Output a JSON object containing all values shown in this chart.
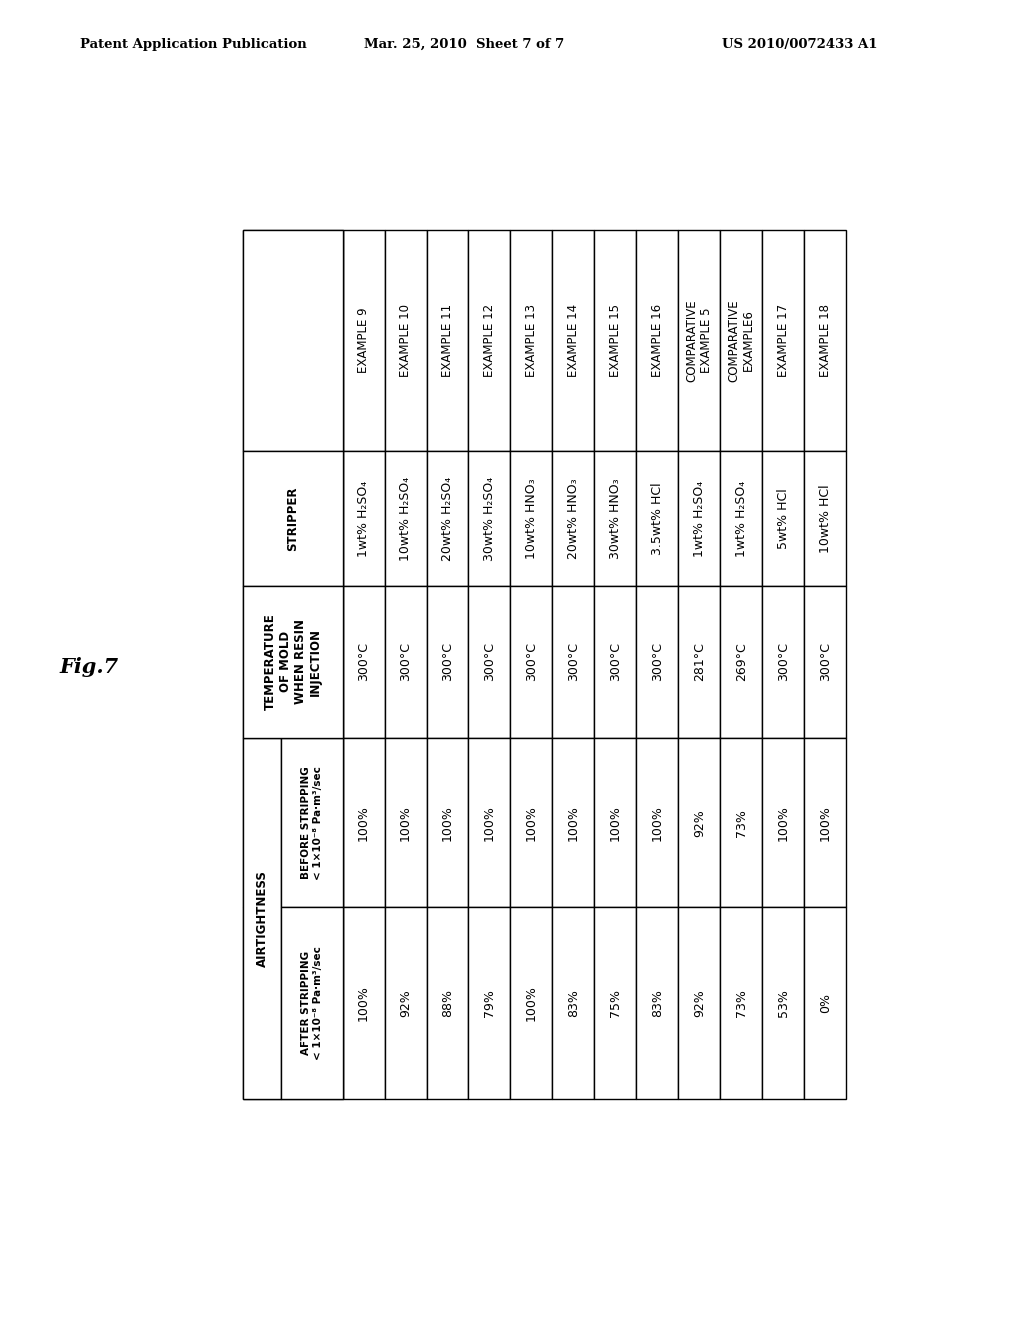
{
  "header_line1": "Patent Application Publication",
  "header_date": "Mar. 25, 2010  Sheet 7 of 7",
  "header_patent": "US 2010/0072433 A1",
  "fig_label": "Fig.7",
  "airtightness_label": "AIRTIGHTNESS",
  "row_headers": [
    "",
    "STRIPPER",
    "TEMPERATURE\nOF MOLD\nWHEN RESIN\nINJECTION",
    "BEFORE STRIPPING\n< 1×10⁻⁸ Pa·m³/sec",
    "AFTER STRIPPING\n< 1×10⁻⁸ Pa·m³/sec"
  ],
  "col_labels": [
    "EXAMPLE 9",
    "EXAMPLE 10",
    "EXAMPLE 11",
    "EXAMPLE 12",
    "EXAMPLE 13",
    "EXAMPLE 14",
    "EXAMPLE 15",
    "EXAMPLE 16",
    "COMPARATIVE\nEXAMPLE 5",
    "COMPARATIVE\nEXAMPLE6",
    "EXAMPLE 17",
    "EXAMPLE 18"
  ],
  "stripper_vals": [
    "1wt% H₂SO₄",
    "10wt% H₂SO₄",
    "20wt% H₂SO₄",
    "30wt% H₂SO₄",
    "10wt% HNO₃",
    "20wt% HNO₃",
    "30wt% HNO₃",
    "3.5wt% HCl",
    "1wt% H₂SO₄",
    "1wt% H₂SO₄",
    "5wt% HCl",
    "10wt% HCl"
  ],
  "temp_vals": [
    "300°C",
    "300°C",
    "300°C",
    "300°C",
    "300°C",
    "300°C",
    "300°C",
    "300°C",
    "281°C",
    "269°C",
    "300°C",
    "300°C"
  ],
  "before_vals": [
    "100%",
    "100%",
    "100%",
    "100%",
    "100%",
    "100%",
    "100%",
    "100%",
    "92%",
    "73%",
    "100%",
    "100%"
  ],
  "after_vals": [
    "100%",
    "92%",
    "88%",
    "79%",
    "100%",
    "83%",
    "75%",
    "83%",
    "92%",
    "73%",
    "53%",
    "0%"
  ],
  "bg_color": "#ffffff",
  "text_color": "#000000",
  "line_color": "#000000"
}
